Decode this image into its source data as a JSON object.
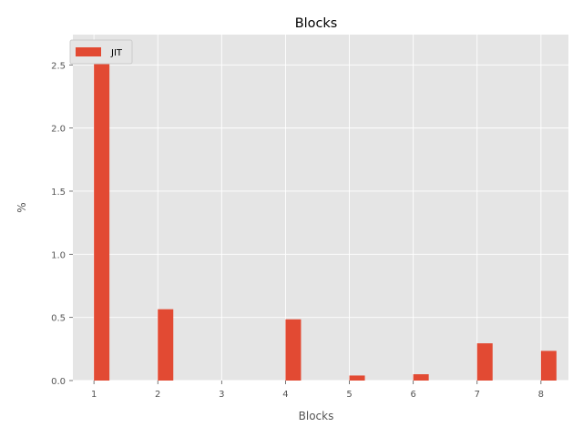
{
  "chart_data": {
    "type": "bar",
    "title": "Blocks",
    "xlabel": "Blocks",
    "ylabel": "%",
    "x": [
      1,
      2,
      4,
      5,
      6,
      7,
      8
    ],
    "xticks": [
      1,
      2,
      3,
      4,
      5,
      6,
      7,
      8
    ],
    "xlim": [
      0.67,
      8.43
    ],
    "ylim": [
      0,
      2.74
    ],
    "yticks": [
      "0.0",
      "0.5",
      "1.0",
      "1.5",
      "2.0",
      "2.5"
    ],
    "grid": true,
    "legend": "upper-left",
    "series": [
      {
        "name": "JIT",
        "color": "#E24A33",
        "values": [
          2.61,
          0.565,
          0.485,
          0.04,
          0.05,
          0.295,
          0.235
        ]
      }
    ]
  }
}
